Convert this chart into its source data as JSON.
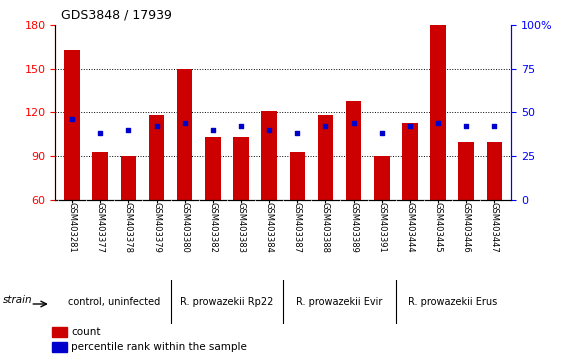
{
  "title": "GDS3848 / 17939",
  "samples": [
    "GSM403281",
    "GSM403377",
    "GSM403378",
    "GSM403379",
    "GSM403380",
    "GSM403382",
    "GSM403383",
    "GSM403384",
    "GSM403387",
    "GSM403388",
    "GSM403389",
    "GSM403391",
    "GSM403444",
    "GSM403445",
    "GSM403446",
    "GSM403447"
  ],
  "counts": [
    163,
    93,
    90,
    118,
    150,
    103,
    103,
    121,
    93,
    118,
    128,
    90,
    113,
    180,
    100,
    100
  ],
  "percentile_ranks": [
    46,
    38,
    40,
    42,
    44,
    40,
    42,
    40,
    38,
    42,
    44,
    38,
    42,
    44,
    42,
    42
  ],
  "y_min": 60,
  "y_max": 180,
  "y_ticks": [
    60,
    90,
    120,
    150,
    180
  ],
  "y2_ticks": [
    0,
    25,
    50,
    75,
    100
  ],
  "bar_color": "#cc0000",
  "dot_color": "#0000cc",
  "groups": [
    {
      "label": "control, uninfected",
      "start": 0,
      "end": 4
    },
    {
      "label": "R. prowazekii Rp22",
      "start": 4,
      "end": 8
    },
    {
      "label": "R. prowazekii Evir",
      "start": 8,
      "end": 12
    },
    {
      "label": "R. prowazekii Erus",
      "start": 12,
      "end": 16
    }
  ],
  "group_color": "#88ee88",
  "strain_label": "strain",
  "legend_count_label": "count",
  "legend_pct_label": "percentile rank within the sample",
  "bg_color": "#ffffff",
  "plot_bg_color": "#ffffff",
  "tick_area_color": "#c8c8c8",
  "grid_ticks": [
    90,
    120,
    150
  ]
}
